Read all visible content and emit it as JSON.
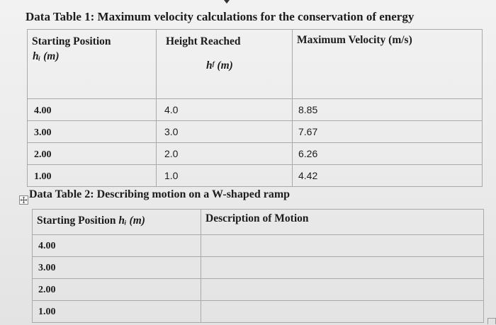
{
  "table1": {
    "title": "Data Table 1: Maximum velocity calculations for the conservation of energy",
    "headers": [
      {
        "label": "Starting Position",
        "symbol": "hᵢ (m)"
      },
      {
        "label": "Height Reached",
        "symbol": "hᶠ (m)"
      },
      {
        "label": "Maximum Velocity (m/s)",
        "symbol": ""
      }
    ],
    "rows": [
      [
        "4.00",
        "4.0",
        "8.85"
      ],
      [
        "3.00",
        "3.0",
        "7.67"
      ],
      [
        "2.00",
        "2.0",
        "6.26"
      ],
      [
        "1.00",
        "1.0",
        "4.42"
      ]
    ]
  },
  "table2": {
    "title": "Data Table 2: Describing motion on a W-shaped ramp",
    "headers": [
      {
        "label": "Starting Position ",
        "symbol": "hᵢ (m)"
      },
      {
        "label": "Description of Motion",
        "symbol": ""
      }
    ],
    "rows": [
      [
        "4.00",
        ""
      ],
      [
        "3.00",
        ""
      ],
      [
        "2.00",
        ""
      ],
      [
        "1.00",
        ""
      ]
    ]
  },
  "icons": {
    "table_move_handle": "move-cross-icon"
  }
}
